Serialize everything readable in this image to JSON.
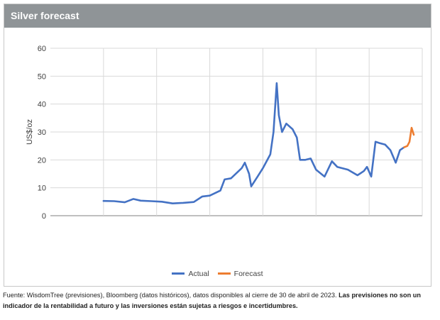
{
  "title": "Silver forecast",
  "source_text": "Fuente: WisdomTree (previsiones), Bloomberg (datos históricos), datos disponibles al cierre de 30 de abril de 2023.",
  "source_bold": "Las previsiones no son un indicador de la rentabilidad a futuro y las inversiones están sujetas a riesgos e incertidumbres.",
  "chart_data": {
    "type": "line",
    "title": "Silver forecast",
    "ylabel": "US$/oz",
    "xlabel": "",
    "ylim": [
      0,
      60
    ],
    "yticks": [
      0,
      10,
      20,
      30,
      40,
      50,
      60
    ],
    "grid": true,
    "legend_position": "bottom",
    "series": [
      {
        "name": "Actual",
        "color": "#4472c4",
        "points": [
          [
            1995.0,
            5.3
          ],
          [
            1996.0,
            5.2
          ],
          [
            1997.0,
            4.8
          ],
          [
            1997.8,
            6.0
          ],
          [
            1998.5,
            5.4
          ],
          [
            1999.5,
            5.2
          ],
          [
            2000.5,
            5.0
          ],
          [
            2001.5,
            4.4
          ],
          [
            2002.5,
            4.6
          ],
          [
            2003.5,
            4.9
          ],
          [
            2004.3,
            6.9
          ],
          [
            2005.0,
            7.2
          ],
          [
            2006.0,
            9.0
          ],
          [
            2006.4,
            13.0
          ],
          [
            2007.0,
            13.4
          ],
          [
            2008.0,
            17.0
          ],
          [
            2008.3,
            19.0
          ],
          [
            2008.7,
            15.0
          ],
          [
            2008.9,
            10.5
          ],
          [
            2009.5,
            14.0
          ],
          [
            2010.0,
            17.0
          ],
          [
            2010.7,
            22.0
          ],
          [
            2011.0,
            30.0
          ],
          [
            2011.3,
            47.5
          ],
          [
            2011.5,
            36.0
          ],
          [
            2011.8,
            30.0
          ],
          [
            2012.2,
            33.0
          ],
          [
            2012.8,
            31.0
          ],
          [
            2013.2,
            28.0
          ],
          [
            2013.5,
            20.0
          ],
          [
            2014.0,
            20.0
          ],
          [
            2014.5,
            20.5
          ],
          [
            2015.0,
            16.5
          ],
          [
            2015.8,
            14.0
          ],
          [
            2016.5,
            19.5
          ],
          [
            2017.0,
            17.5
          ],
          [
            2018.0,
            16.5
          ],
          [
            2018.9,
            14.5
          ],
          [
            2019.5,
            16.0
          ],
          [
            2019.8,
            17.5
          ],
          [
            2020.2,
            14.0
          ],
          [
            2020.6,
            26.5
          ],
          [
            2021.0,
            26.0
          ],
          [
            2021.5,
            25.5
          ],
          [
            2022.0,
            23.5
          ],
          [
            2022.5,
            19.0
          ],
          [
            2022.9,
            23.5
          ],
          [
            2023.3,
            24.5
          ]
        ]
      },
      {
        "name": "Forecast",
        "color": "#ed7d31",
        "points": [
          [
            2023.3,
            24.5
          ],
          [
            2023.6,
            25.0
          ],
          [
            2023.8,
            26.5
          ],
          [
            2024.0,
            31.5
          ],
          [
            2024.2,
            29.0
          ]
        ]
      }
    ]
  }
}
